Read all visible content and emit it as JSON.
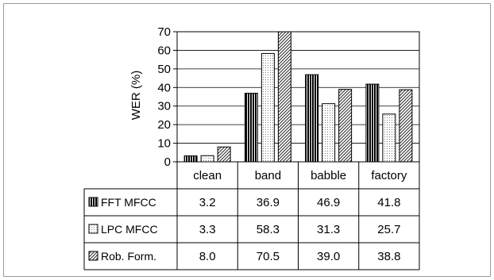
{
  "chart_data": {
    "type": "bar",
    "title": "",
    "xlabel": "",
    "ylabel": "WER (%)",
    "ylim": [
      0,
      70
    ],
    "yticks": [
      "0",
      "10",
      "20",
      "30",
      "40",
      "50",
      "60",
      "70"
    ],
    "grid": true,
    "categories": [
      "clean",
      "band",
      "babble",
      "factory"
    ],
    "series": [
      {
        "name": "FFT MFCC",
        "values": [
          3.2,
          36.9,
          46.9,
          41.8
        ],
        "value_labels": [
          "3.2",
          "36.9",
          "46.9",
          "41.8"
        ],
        "pattern": "vertical-stripes"
      },
      {
        "name": "LPC MFCC",
        "values": [
          3.3,
          58.3,
          31.3,
          25.7
        ],
        "value_labels": [
          "3.3",
          "58.3",
          "31.3",
          "25.7"
        ],
        "pattern": "dots"
      },
      {
        "name": "Rob. Form.",
        "values": [
          8.0,
          70.5,
          39.0,
          38.8
        ],
        "value_labels": [
          "8.0",
          "70.5",
          "39.0",
          "38.8"
        ],
        "pattern": "diagonal-hatch"
      }
    ]
  }
}
